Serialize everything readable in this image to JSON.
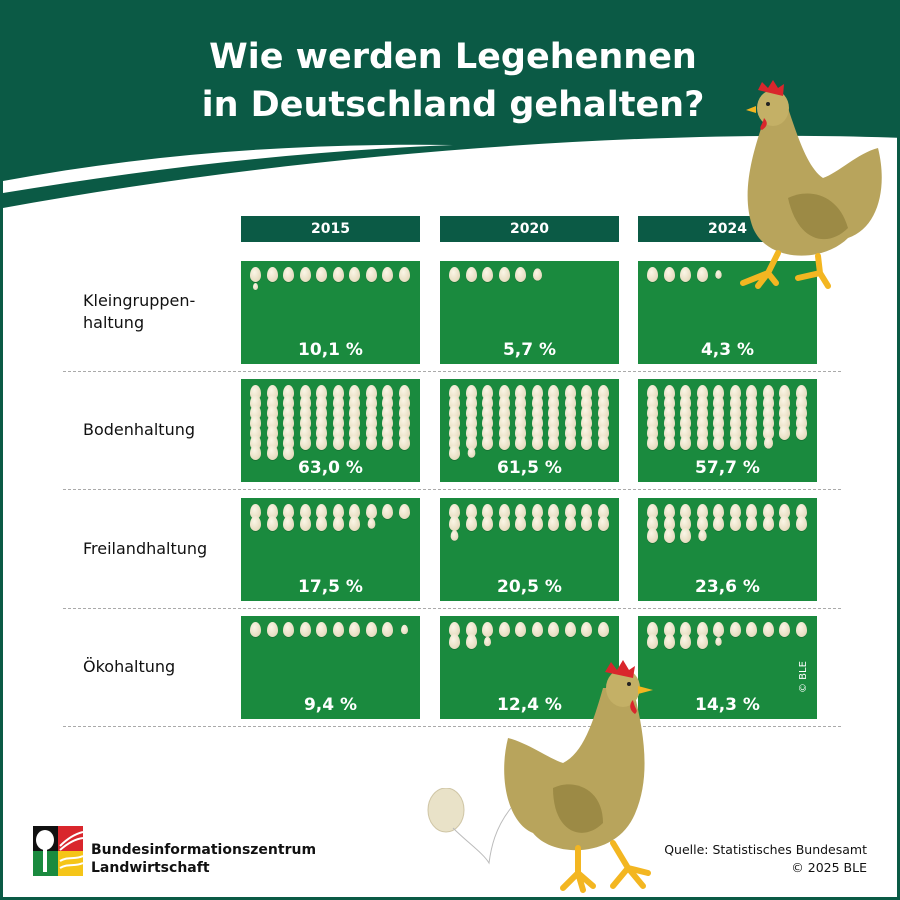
{
  "title_line1": "Wie werden Legehennen",
  "title_line2": "in Deutschland gehalten?",
  "colors": {
    "header": "#0b5a45",
    "cell": "#1a8a3e",
    "egg": "#efe6cc",
    "hen": "#b8a45c",
    "comb": "#d9262c"
  },
  "chart_data": {
    "type": "pictogram",
    "unit_note": "1 egg = 1 %",
    "categories": [
      "2015",
      "2020",
      "2024"
    ],
    "series": [
      {
        "name": "Kleingruppen-haltung",
        "label_lines": [
          "Kleingruppen-",
          "haltung"
        ],
        "values": [
          10.1,
          5.7,
          4.3
        ],
        "labels": [
          "10,1 %",
          "5,7 %",
          "4,3 %"
        ]
      },
      {
        "name": "Bodenhaltung",
        "label_lines": [
          "Bodenhaltung"
        ],
        "values": [
          63.0,
          61.5,
          57.7
        ],
        "labels": [
          "63,0 %",
          "61,5 %",
          "57,7 %"
        ]
      },
      {
        "name": "Freilandhaltung",
        "label_lines": [
          "Freilandhaltung"
        ],
        "values": [
          17.5,
          20.5,
          23.6
        ],
        "labels": [
          "17,5 %",
          "20,5 %",
          "23,6 %"
        ]
      },
      {
        "name": "Ökohaltung",
        "label_lines": [
          "Ökohaltung"
        ],
        "values": [
          9.4,
          12.4,
          14.3
        ],
        "labels": [
          "9,4 %",
          "12,4 %",
          "14,3 %"
        ]
      }
    ]
  },
  "watermark": "© BLE",
  "logo": {
    "line1": "Bundesinformationszentrum",
    "line2": "Landwirtschaft"
  },
  "source": {
    "line1": "Quelle: Statistisches Bundesamt",
    "line2": "© 2025 BLE"
  }
}
